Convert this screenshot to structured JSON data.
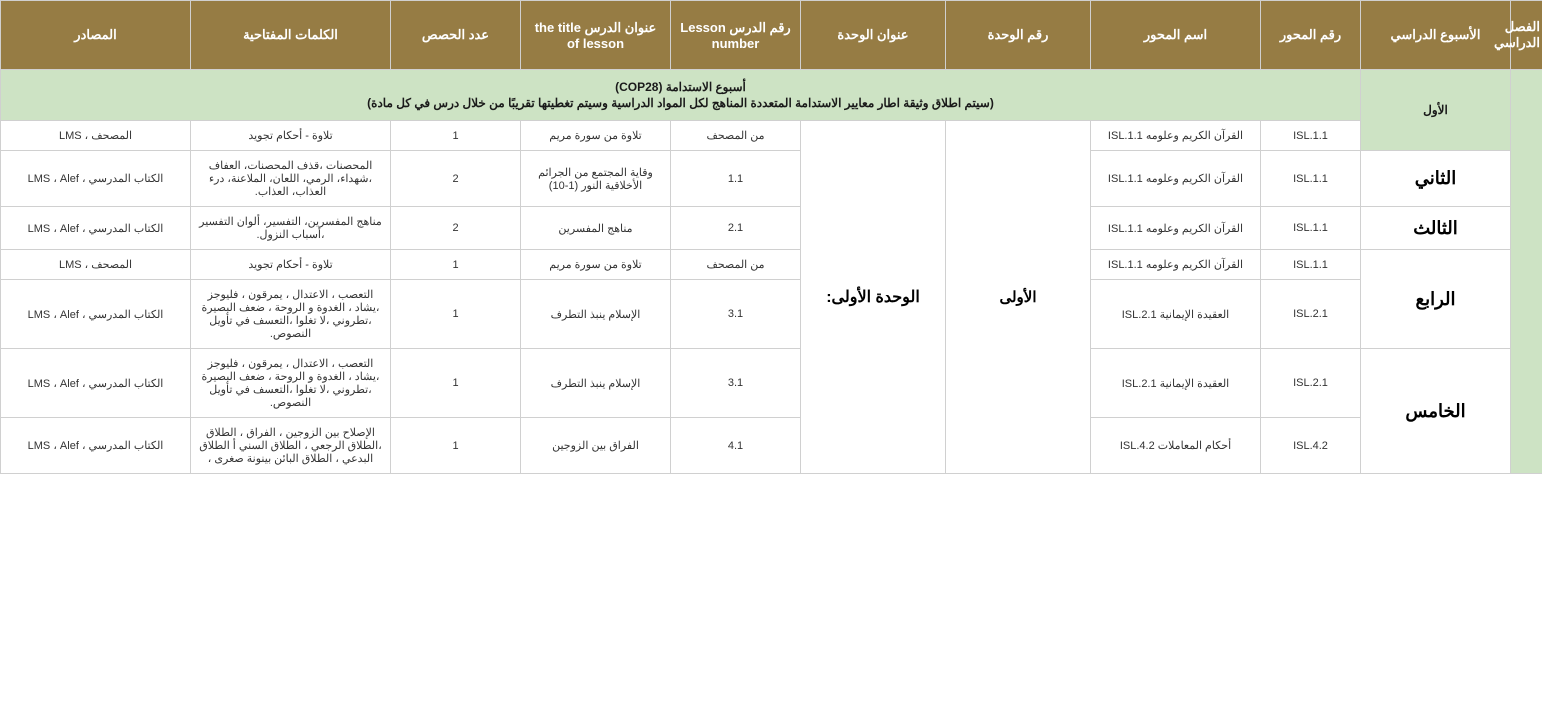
{
  "colors": {
    "header_bg": "#967C44",
    "header_fg": "#ffffff",
    "border": "#d0d0d0",
    "cop28_bg": "#cde3c4"
  },
  "headers": {
    "semester": "الفصل الدراسي",
    "week": "الأسبوع الدراسي",
    "axis_num": "رقم المحور",
    "axis_name": "اسم المحور",
    "unit_num": "رقم الوحدة",
    "unit_title": "عنوان الوحدة",
    "lesson_num": "رقم الدرس   Lesson number",
    "lesson_title": "عنوان الدرس  the title of lesson",
    "classes": "عدد الحصص",
    "keywords": "الكلمات المفتاحية",
    "sources": "المصادر"
  },
  "cop28": {
    "title": "أسبوع الاستدامة (COP28)",
    "sub": "(سيتم اطلاق وثيقة اطار معايير الاستدامة المتعددة المناهج لكل المواد الدراسية وسيتم تغطيتها تقريبًا من خلال درس في كل مادة)"
  },
  "unit_num_label": "الأولى",
  "unit_title_label": "الوحدة الأولى:",
  "weeks": {
    "w1": "الأول",
    "w2": "الثاني",
    "w3": "الثالث",
    "w4": "الرابع",
    "w5": "الخامس"
  },
  "rows": [
    {
      "axis_num": "ISL.1.1",
      "axis_name": "القرآن الكريم وعلومه ISL.1.1",
      "lesson_num": "من المصحف",
      "lesson_title": "تلاوة من سورة مريم",
      "classes": "1",
      "keywords": "تلاوة - أحكام تجويد",
      "sources": "المصحف ، LMS"
    },
    {
      "axis_num": "ISL.1.1",
      "axis_name": "القرآن الكريم وعلومه ISL.1.1",
      "lesson_num": "1.1",
      "lesson_title": "وقاية المجتمع من الجرائم الأخلاقية النور (1-10)",
      "classes": "2",
      "keywords": "المحصنات ،قذف المحصنات، العفاف ،شهداء، الرمي، اللعان، الملاعنة، درء  العذاب، العذاب.",
      "sources": "الكتاب المدرسي  ، LMS ، Alef"
    },
    {
      "axis_num": "ISL.1.1",
      "axis_name": "القرآن الكريم وعلومه ISL.1.1",
      "lesson_num": "2.1",
      "lesson_title": "مناهج المفسرين",
      "classes": "2",
      "keywords": "مناهج المفسرين، التفسير، ألوان التفسير ،أسباب النزول.",
      "sources": "الكتاب المدرسي  ، LMS ، Alef"
    },
    {
      "axis_num": "ISL.1.1",
      "axis_name": "القرآن الكريم وعلومه ISL.1.1",
      "lesson_num": "من المصحف",
      "lesson_title": "تلاوة من سورة مريم",
      "classes": "1",
      "keywords": "تلاوة - أحكام تجويد",
      "sources": "المصحف ، LMS"
    },
    {
      "axis_num": "ISL.2.1",
      "axis_name": "العقيدة الإيمانية ISL.2.1",
      "lesson_num": "3.1",
      "lesson_title": "الإسلام ينبذ التطرف",
      "classes": "1",
      "keywords": "التعصب ، الاعتدال ، يمرقون ، فليوجز ،يشاد ، الغدوة و الروحة ، ضعف البصيرة ،تطروني ،لا تغلوا ،التعسف في تأويل النصوص.",
      "sources": "الكتاب المدرسي  ، LMS ، Alef"
    },
    {
      "axis_num": "ISL.2.1",
      "axis_name": "العقيدة الإيمانية ISL.2.1",
      "lesson_num": "3.1",
      "lesson_title": "الإسلام ينبذ التطرف",
      "classes": "1",
      "keywords": "التعصب ، الاعتدال ، يمرقون ، فليوجز ،يشاد ، الغدوة و الروحة ، ضعف البصيرة ،تطروني ،لا تغلوا ،التعسف في تأويل النصوص.",
      "sources": "الكتاب المدرسي  ، LMS ، Alef"
    },
    {
      "axis_num": "ISL.4.2",
      "axis_name": "أحكام المعاملات ISL.4.2",
      "lesson_num": "4.1",
      "lesson_title": "الفراق بين الزوجين",
      "classes": "1",
      "keywords": "الإصلاح بين الزوجين ، الفراق ، الطلاق ،الطلاق الرجعي ، الطلاق السني أ الطلاق البدعي ، الطلاق البائن بينونة صغرى ،",
      "sources": "الكتاب المدرسي  ، LMS ، Alef"
    }
  ]
}
